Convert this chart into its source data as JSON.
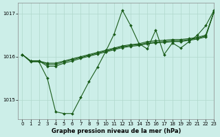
{
  "xlabel": "Graphe pression niveau de la mer (hPa)",
  "background_color": "#cceee8",
  "plot_bg_color": "#cceee8",
  "grid_color": "#b0d8cc",
  "line_color": "#1a5c1a",
  "ylim": [
    1014.55,
    1017.25
  ],
  "xlim": [
    -0.5,
    23
  ],
  "yticks": [
    1015,
    1016,
    1017
  ],
  "xticks": [
    0,
    1,
    2,
    3,
    4,
    5,
    6,
    7,
    8,
    9,
    10,
    11,
    12,
    13,
    14,
    15,
    16,
    17,
    18,
    19,
    20,
    21,
    22,
    23
  ],
  "lines": [
    {
      "x": [
        0,
        1,
        2,
        3,
        4,
        5,
        6,
        7,
        8,
        9,
        10,
        11,
        12,
        13,
        14,
        15,
        16,
        17,
        18,
        19,
        20,
        21,
        22,
        23
      ],
      "y": [
        1016.05,
        1015.9,
        1015.9,
        1015.85,
        1015.85,
        1015.9,
        1015.95,
        1016.0,
        1016.05,
        1016.1,
        1016.15,
        1016.2,
        1016.25,
        1016.28,
        1016.3,
        1016.35,
        1016.37,
        1016.38,
        1016.4,
        1016.4,
        1016.42,
        1016.45,
        1016.5,
        1017.05
      ],
      "marker": true
    },
    {
      "x": [
        0,
        1,
        2,
        3,
        4,
        5,
        6,
        7,
        8,
        9,
        10,
        11,
        12,
        13,
        14,
        15,
        16,
        17,
        18,
        19,
        20,
        21,
        22,
        23
      ],
      "y": [
        1016.05,
        1015.9,
        1015.9,
        1015.82,
        1015.82,
        1015.88,
        1015.93,
        1015.98,
        1016.03,
        1016.08,
        1016.13,
        1016.18,
        1016.23,
        1016.26,
        1016.28,
        1016.32,
        1016.34,
        1016.35,
        1016.37,
        1016.37,
        1016.4,
        1016.43,
        1016.48,
        1017.05
      ],
      "marker": true
    },
    {
      "x": [
        0,
        1,
        2,
        3,
        4,
        5,
        6,
        7,
        8,
        9,
        10,
        11,
        12,
        13,
        14,
        15,
        16,
        17,
        18,
        19,
        20,
        21,
        22,
        23
      ],
      "y": [
        1016.05,
        1015.9,
        1015.9,
        1015.78,
        1015.78,
        1015.85,
        1015.9,
        1015.96,
        1016.01,
        1016.06,
        1016.11,
        1016.16,
        1016.21,
        1016.24,
        1016.26,
        1016.3,
        1016.32,
        1016.33,
        1016.35,
        1016.35,
        1016.38,
        1016.41,
        1016.46,
        1017.05
      ],
      "marker": true
    },
    {
      "x": [
        0,
        1,
        2,
        3,
        4,
        5,
        6,
        7,
        8,
        9,
        10,
        11,
        12,
        13,
        14,
        15,
        16,
        17,
        18,
        19,
        20,
        21,
        22,
        23
      ],
      "y": [
        1016.05,
        1015.88,
        1015.88,
        1015.5,
        1014.72,
        1014.68,
        1014.68,
        1015.05,
        1015.42,
        1015.75,
        1016.12,
        1016.52,
        1017.08,
        1016.72,
        1016.3,
        1016.18,
        1016.62,
        1016.05,
        1016.32,
        1016.2,
        1016.35,
        1016.5,
        1016.72,
        1017.08
      ],
      "marker": true
    }
  ],
  "marker_size": 2.0,
  "line_width": 0.8,
  "tick_labelsize": 5,
  "xlabel_fontsize": 6
}
